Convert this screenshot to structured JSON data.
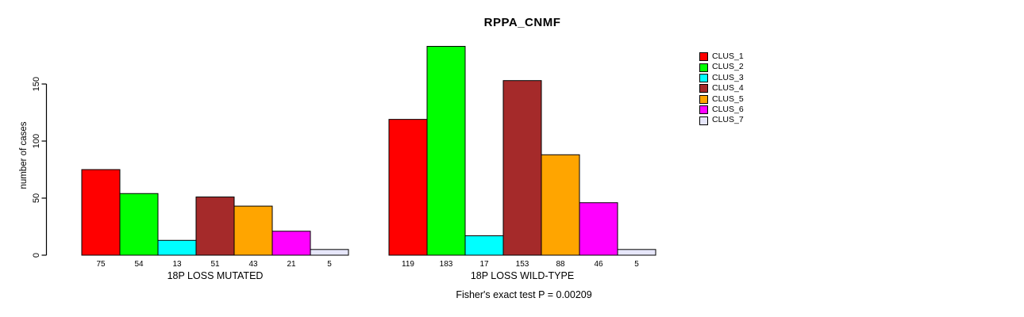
{
  "title": "RPPA_CNMF",
  "ylabel": "number of cases",
  "footnote": "Fisher's exact test P = 0.00209",
  "legend": {
    "items": [
      {
        "label": "CLUS_1",
        "color": "#FF0000"
      },
      {
        "label": "CLUS_2",
        "color": "#00FF00"
      },
      {
        "label": "CLUS_3",
        "color": "#00FFFF"
      },
      {
        "label": "CLUS_4",
        "color": "#A52A2A"
      },
      {
        "label": "CLUS_5",
        "color": "#FFA500"
      },
      {
        "label": "CLUS_6",
        "color": "#FF00FF"
      },
      {
        "label": "CLUS_7",
        "color": "#E6E6FA"
      }
    ]
  },
  "chart_data": {
    "type": "bar",
    "title": "RPPA_CNMF",
    "xlabel": "",
    "ylabel": "number of cases",
    "yticks": [
      0,
      50,
      100,
      150
    ],
    "ylim": [
      0,
      183
    ],
    "grid": false,
    "legend_position": "right",
    "categories": [
      "CLUS_1",
      "CLUS_2",
      "CLUS_3",
      "CLUS_4",
      "CLUS_5",
      "CLUS_6",
      "CLUS_7"
    ],
    "colors": [
      "#FF0000",
      "#00FF00",
      "#00FFFF",
      "#A52A2A",
      "#FFA500",
      "#FF00FF",
      "#E6E6FA"
    ],
    "series": [
      {
        "name": "18P LOSS MUTATED",
        "values": [
          75,
          54,
          13,
          51,
          43,
          21,
          5
        ]
      },
      {
        "name": "18P LOSS WILD-TYPE",
        "values": [
          119,
          183,
          17,
          153,
          88,
          46,
          5
        ]
      }
    ],
    "annotation": "Fisher's exact test P = 0.00209"
  }
}
